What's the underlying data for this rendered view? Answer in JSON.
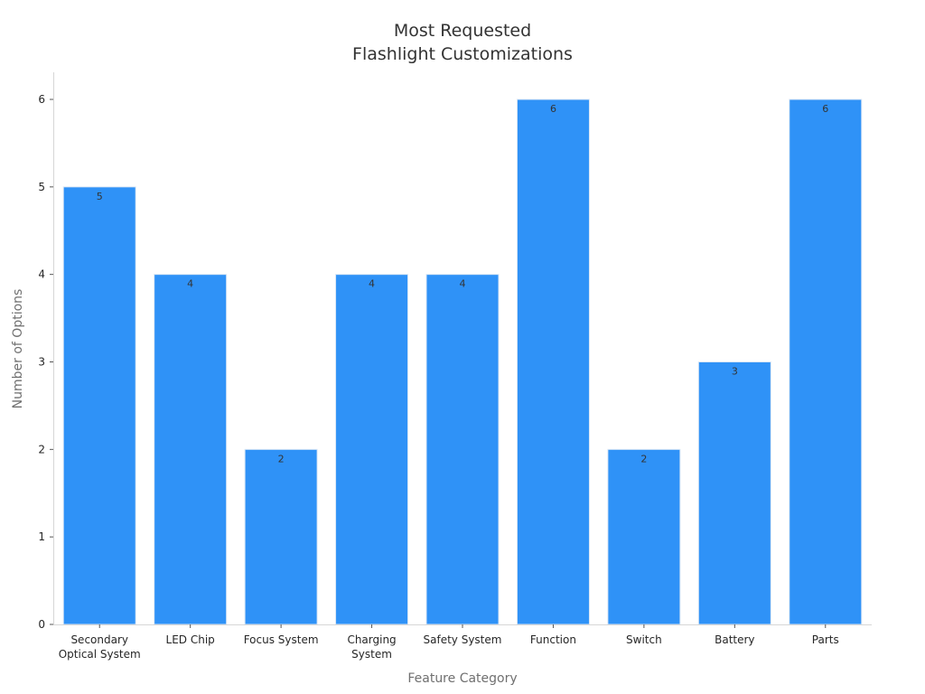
{
  "chart_data": {
    "type": "bar",
    "title_lines": [
      "Most Requested",
      "Flashlight Customizations"
    ],
    "xlabel": "Feature Category",
    "ylabel": "Number of Options",
    "categories": [
      [
        "Secondary",
        "Optical System"
      ],
      [
        "LED Chip"
      ],
      [
        "Focus System"
      ],
      [
        "Charging",
        "System"
      ],
      [
        "Safety System"
      ],
      [
        "Function"
      ],
      [
        "Switch"
      ],
      [
        "Battery"
      ],
      [
        "Parts"
      ]
    ],
    "values": [
      5,
      4,
      2,
      4,
      4,
      6,
      2,
      3,
      6
    ],
    "ylim": [
      0,
      6.3
    ],
    "yticks": [
      0,
      1,
      2,
      3,
      4,
      5,
      6
    ],
    "grid": false,
    "bar_color": "#2f92f7"
  }
}
